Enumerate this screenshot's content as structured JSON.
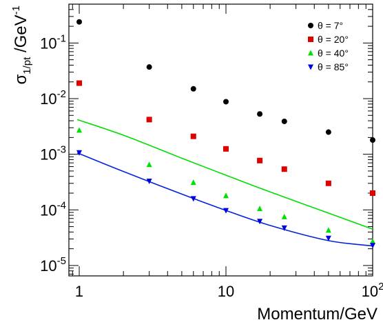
{
  "chart_data": {
    "type": "scatter",
    "title": "",
    "xlabel": "Momentum/GeV",
    "ylabel_main": "σ",
    "ylabel_sub": "1/pt",
    "ylabel_rest": " /GeV",
    "ylabel_sup": "-1",
    "xscale": "log",
    "yscale": "log",
    "xlim": [
      0.85,
      100
    ],
    "ylim": [
      6.5e-06,
      0.5
    ],
    "grid": false,
    "legend_position": "top-right",
    "x_ticks": [
      {
        "base": "1",
        "exp": ""
      },
      {
        "base": "10",
        "exp": ""
      },
      {
        "base": "10",
        "exp": "2"
      }
    ],
    "y_ticks": [
      {
        "base": "10",
        "exp": "-5"
      },
      {
        "base": "10",
        "exp": "-4"
      },
      {
        "base": "10",
        "exp": "-3"
      },
      {
        "base": "10",
        "exp": "-2"
      },
      {
        "base": "10",
        "exp": "-1"
      }
    ],
    "series": [
      {
        "name": "θ = 7°",
        "color": "#000000",
        "marker": "circle",
        "x": [
          1,
          3,
          6,
          10,
          17,
          25,
          50,
          100
        ],
        "y": [
          0.24,
          0.037,
          0.015,
          0.0088,
          0.0053,
          0.0039,
          0.0025,
          0.0018
        ]
      },
      {
        "name": "θ = 20°",
        "color": "#e00000",
        "marker": "square",
        "x": [
          1,
          3,
          6,
          10,
          17,
          25,
          50,
          100
        ],
        "y": [
          0.019,
          0.0042,
          0.0021,
          0.00125,
          0.00077,
          0.00054,
          0.0003,
          0.0002
        ]
      },
      {
        "name": "θ = 40°",
        "color": "#00e000",
        "marker": "triangle-up",
        "x": [
          1,
          3,
          6,
          10,
          17,
          25,
          50,
          100
        ],
        "y": [
          0.0027,
          0.00065,
          0.00031,
          0.00018,
          0.000105,
          7.5e-05,
          4.3e-05,
          2.7e-05
        ]
      },
      {
        "name": "θ = 85°",
        "color": "#0000e0",
        "marker": "triangle-down",
        "x": [
          1,
          3,
          6,
          10,
          17,
          25,
          50,
          100
        ],
        "y": [
          0.00107,
          0.00033,
          0.00016,
          9.75e-05,
          6.25e-05,
          4.75e-05,
          3.1e-05,
          2.3e-05
        ],
        "yerr_last": [
          2e-06,
          2e-06
        ]
      }
    ],
    "curves": [
      {
        "color": "#00dd00",
        "x": [
          0.97,
          2,
          5,
          10,
          20,
          50,
          100
        ],
        "y": [
          0.0042,
          0.0022,
          0.00085,
          0.00042,
          0.00021,
          8.75e-05,
          4.5e-05
        ]
      },
      {
        "color": "#0022dd",
        "x": [
          0.97,
          2,
          5,
          10,
          20,
          50,
          100
        ],
        "y": [
          0.00106,
          0.00049,
          0.000192,
          9.75e-05,
          5.25e-05,
          2.8e-05,
          2.25e-05
        ]
      }
    ]
  }
}
